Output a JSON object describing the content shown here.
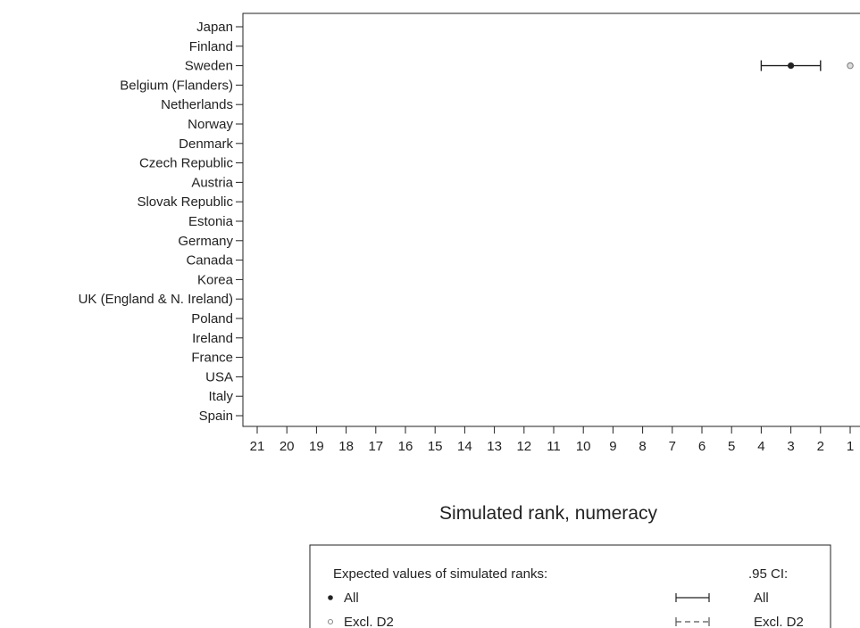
{
  "chart_data": {
    "type": "scatter",
    "orientation": "horizontal",
    "xlabel": "Simulated rank, numeracy",
    "x_reversed": true,
    "xlim": [
      21,
      1
    ],
    "x_ticks": [
      "21",
      "20",
      "19",
      "18",
      "17",
      "16",
      "15",
      "14",
      "13",
      "12",
      "11",
      "10",
      "9",
      "8",
      "7",
      "6",
      "5",
      "4",
      "3",
      "2",
      "1"
    ],
    "categories": [
      "Japan",
      "Finland",
      "Sweden",
      "Belgium (Flanders)",
      "Netherlands",
      "Norway",
      "Denmark",
      "Czech Republic",
      "Austria",
      "Slovak Republic",
      "Estonia",
      "Germany",
      "Canada",
      "Korea",
      "UK (England & N. Ireland)",
      "Poland",
      "Ireland",
      "France",
      "USA",
      "Italy",
      "Spain"
    ],
    "series": [
      {
        "name": "All",
        "marker": "filled-circle",
        "color": "#222222",
        "points": [
          {
            "category": "Sweden",
            "value": 3,
            "ci": [
              4,
              2
            ]
          }
        ]
      },
      {
        "name": "Excl. D2",
        "marker": "hollow-circle",
        "color": "#888888",
        "points": [
          {
            "category": "Sweden",
            "value": 1
          }
        ]
      }
    ],
    "legend": {
      "position": "bottom",
      "expected_heading": "Expected values of simulated ranks:",
      "ci_heading": ".95 CI:",
      "all_label": "All",
      "excl_label": "Excl. D2",
      "ci_all_label": "All",
      "ci_excl_label": "Excl. D2"
    }
  }
}
